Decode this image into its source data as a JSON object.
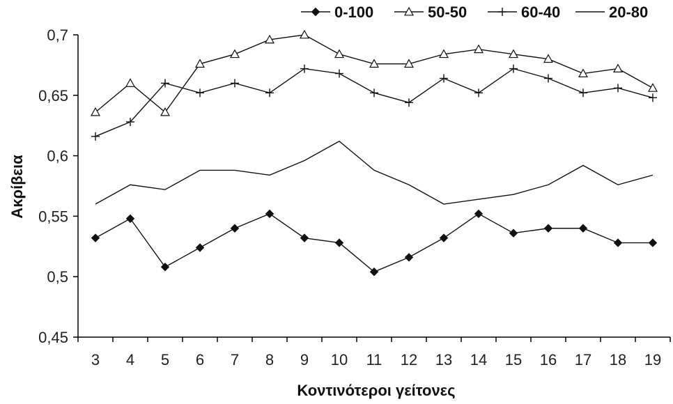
{
  "chart_data": {
    "type": "line",
    "title": "",
    "xlabel": "Κοντινότεροι γείτονες",
    "ylabel": "Ακρίβεια",
    "x": [
      3,
      4,
      5,
      6,
      7,
      8,
      9,
      10,
      11,
      12,
      13,
      14,
      15,
      16,
      17,
      18,
      19
    ],
    "ylim": [
      0.45,
      0.7
    ],
    "yticks": [
      0.45,
      0.5,
      0.55,
      0.6,
      0.65,
      0.7
    ],
    "ytick_labels": [
      "0,45",
      "0,5",
      "0,55",
      "0,6",
      "0,65",
      "0,7"
    ],
    "grid": false,
    "legend_position": "top",
    "series": [
      {
        "name": "0-100",
        "marker": "diamond-filled",
        "values": [
          0.532,
          0.548,
          0.508,
          0.524,
          0.54,
          0.552,
          0.532,
          0.528,
          0.504,
          0.516,
          0.532,
          0.552,
          0.536,
          0.54,
          0.54,
          0.528,
          0.528
        ]
      },
      {
        "name": "50-50",
        "marker": "triangle-open",
        "values": [
          0.636,
          0.66,
          0.636,
          0.676,
          0.684,
          0.696,
          0.7,
          0.684,
          0.676,
          0.676,
          0.684,
          0.688,
          0.684,
          0.68,
          0.668,
          0.672,
          0.656
        ]
      },
      {
        "name": "60-40",
        "marker": "plus",
        "values": [
          0.616,
          0.628,
          0.66,
          0.652,
          0.66,
          0.652,
          0.672,
          0.668,
          0.652,
          0.644,
          0.664,
          0.652,
          0.672,
          0.664,
          0.652,
          0.656,
          0.648
        ]
      },
      {
        "name": "20-80",
        "marker": "none",
        "values": [
          0.56,
          0.576,
          0.572,
          0.588,
          0.588,
          0.584,
          0.596,
          0.612,
          0.588,
          0.576,
          0.56,
          0.564,
          0.568,
          0.576,
          0.592,
          0.576,
          0.584
        ]
      }
    ]
  }
}
